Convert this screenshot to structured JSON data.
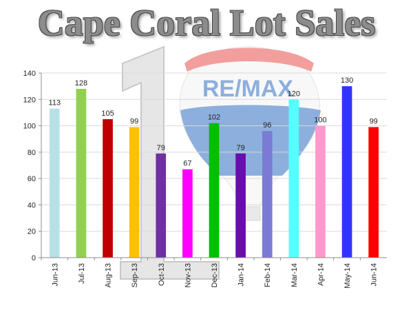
{
  "title": "Cape Coral Lot Sales",
  "colors": {
    "grid": "#d9d9d9",
    "axis": "#8c8c8c",
    "balloon_red": "#e8504e",
    "balloon_blue": "#2f6fc2",
    "watermark": "#c8c8c8"
  },
  "watermark": {
    "brand": "RE/MAX",
    "icon": "hot-air-balloon-icon",
    "number_graphic": "number-one-graphic"
  },
  "chart_data": {
    "type": "bar",
    "title": "Cape Coral Lot Sales",
    "xlabel": "",
    "ylabel": "",
    "ylim": [
      0,
      140
    ],
    "yticks": [
      0,
      20,
      40,
      60,
      80,
      100,
      120,
      140
    ],
    "grid": true,
    "legend": "none",
    "categories": [
      "Jun-13",
      "Jul-13",
      "Aug-13",
      "Sep-13",
      "Oct-13",
      "Nov-13",
      "Dec-13",
      "Jan-14",
      "Feb-14",
      "Mar-14",
      "Apr-14",
      "May-14",
      "Jun-14"
    ],
    "values": [
      113,
      128,
      105,
      99,
      79,
      67,
      102,
      79,
      96,
      120,
      100,
      130,
      99
    ],
    "bar_colors": [
      "#b7e1e6",
      "#92d050",
      "#c00000",
      "#ffc000",
      "#7030a0",
      "#ff00ff",
      "#00c000",
      "#6a0dad",
      "#7b7bd6",
      "#55ffff",
      "#ff99cc",
      "#3333ff",
      "#ff0000"
    ]
  }
}
